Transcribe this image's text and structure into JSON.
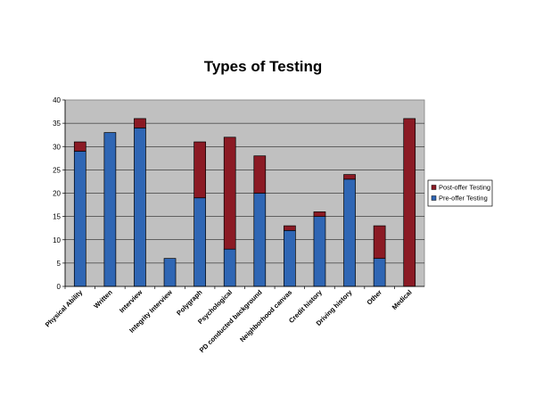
{
  "chart_data": {
    "type": "bar",
    "stacked": true,
    "title": "Types of Testing",
    "xlabel": "",
    "ylabel": "",
    "ylim": [
      0,
      40
    ],
    "yticks": [
      0,
      5,
      10,
      15,
      20,
      25,
      30,
      35,
      40
    ],
    "grid": true,
    "legend_position": "right",
    "categories": [
      "Physical Ability",
      "Written",
      "Interview",
      "Integrity Interview",
      "Polygraph",
      "Psychological",
      "PD conducted background",
      "Neighborhood canvas",
      "Credit history",
      "Driving history",
      "Other",
      "Medical"
    ],
    "series": [
      {
        "name": "Pre-offer Testing",
        "color": "#2f66b4",
        "values": [
          29,
          33,
          34,
          6,
          19,
          8,
          20,
          12,
          15,
          23,
          6,
          0
        ]
      },
      {
        "name": "Post-offer Testing",
        "color": "#8b1a24",
        "values": [
          2,
          0,
          2,
          0,
          12,
          24,
          8,
          1,
          1,
          1,
          7,
          36
        ]
      }
    ],
    "legend_order": [
      "Post-offer Testing",
      "Pre-offer Testing"
    ],
    "plot_background": "#c0c0c0"
  }
}
